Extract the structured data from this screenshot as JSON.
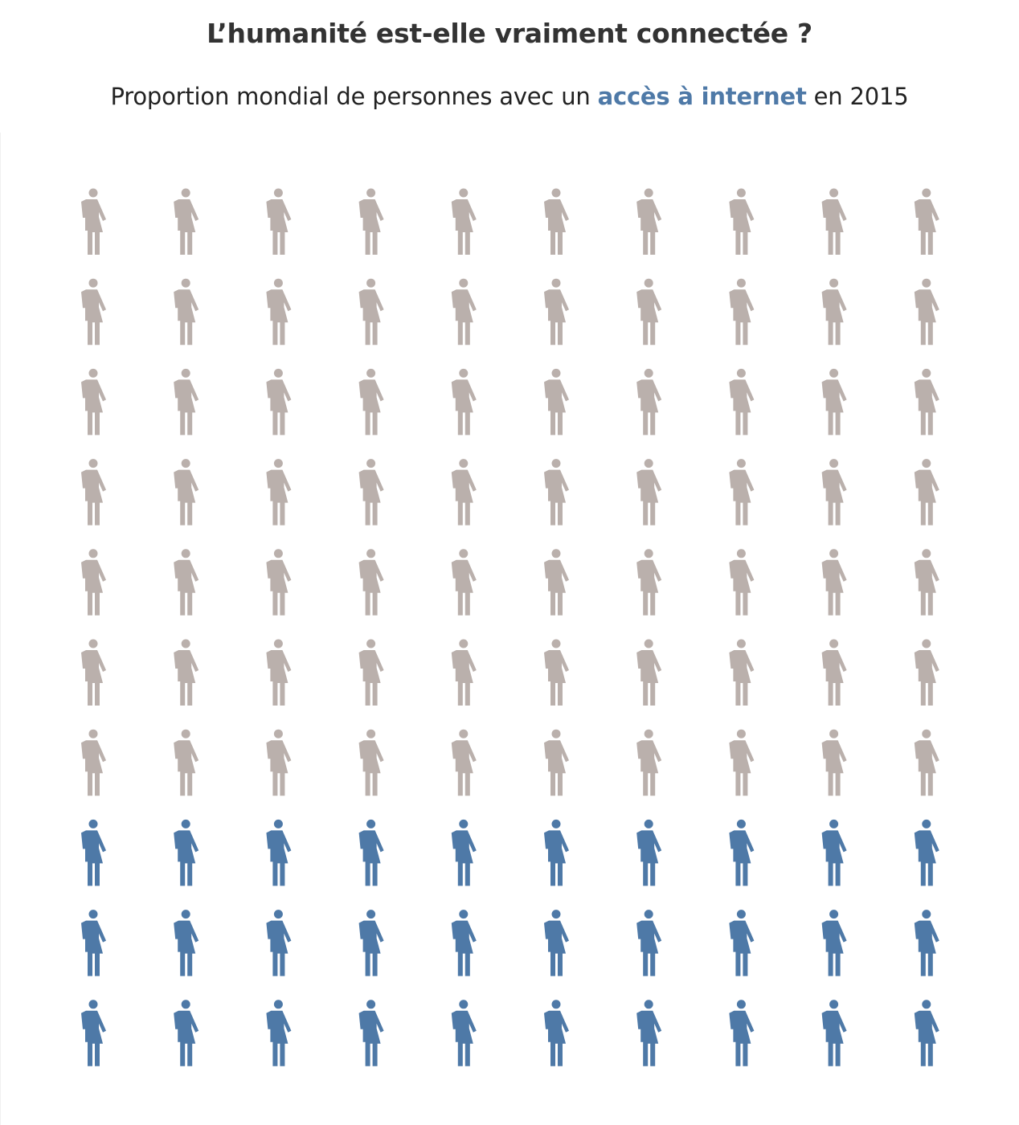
{
  "title": "L’humanité est-elle vraiment connectée ?",
  "subtitle": {
    "before": "Proportion mondial de personnes avec un ",
    "highlight": "accès à internet",
    "after": " en 2015"
  },
  "colors": {
    "connected": "#4e79a7",
    "not_connected": "#bab0ac",
    "title": "#333333",
    "subtitle": "#222222"
  },
  "chart_data": {
    "type": "pictogram",
    "icon": "person-icon",
    "rows": 10,
    "columns": 10,
    "total": 100,
    "series": [
      {
        "name": "accès à internet",
        "value": 30,
        "color": "#4e79a7"
      },
      {
        "name": "",
        "value": 70,
        "color": "#bab0ac"
      }
    ],
    "fill_order": "bottom-up",
    "grid": false,
    "legend": "none"
  }
}
